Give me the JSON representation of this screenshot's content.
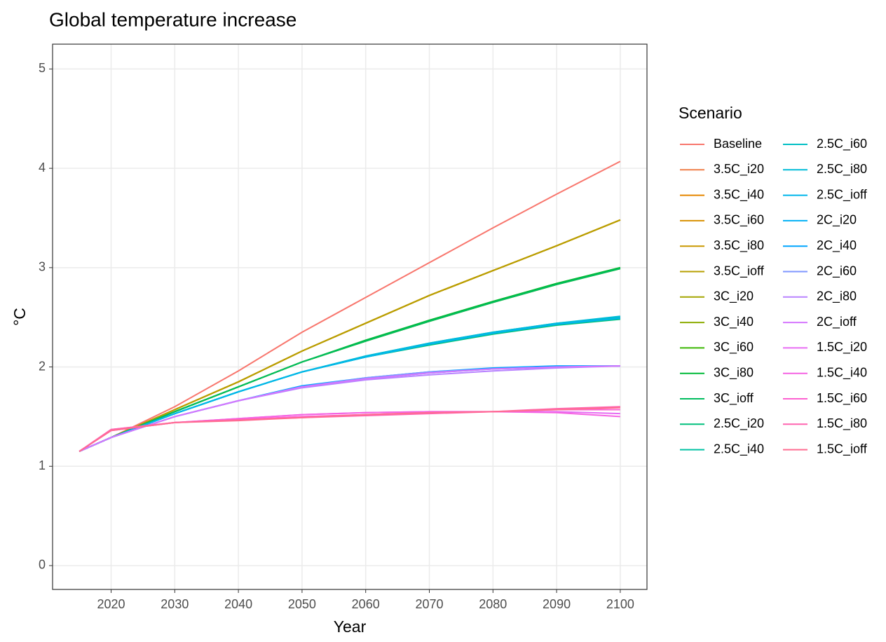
{
  "chart_data": {
    "type": "line",
    "title": "Global temperature increase",
    "x_label": "Year",
    "y_label": "°C",
    "legend_title": "Scenario",
    "legend_position": "right",
    "grid": true,
    "x": [
      2015,
      2020,
      2030,
      2040,
      2050,
      2060,
      2070,
      2080,
      2090,
      2100
    ],
    "xlim": [
      2010.8,
      2104.2
    ],
    "xticks": [
      2020,
      2030,
      2040,
      2050,
      2060,
      2070,
      2080,
      2090,
      2100
    ],
    "ylim": [
      -0.24,
      5.25
    ],
    "yticks": [
      0,
      1,
      2,
      3,
      4,
      5
    ],
    "series": [
      {
        "name": "Baseline",
        "color": "#F8766D",
        "values": [
          1.15,
          1.29,
          1.6,
          1.96,
          2.35,
          2.7,
          3.05,
          3.4,
          3.74,
          4.07
        ]
      },
      {
        "name": "3.5C_i20",
        "color": "#EF7F49",
        "values": [
          1.15,
          1.29,
          1.57,
          1.85,
          2.16,
          2.44,
          2.72,
          2.97,
          3.22,
          3.48
        ]
      },
      {
        "name": "3.5C_i40",
        "color": "#E58700",
        "values": [
          1.15,
          1.29,
          1.57,
          1.85,
          2.16,
          2.44,
          2.72,
          2.97,
          3.22,
          3.48
        ]
      },
      {
        "name": "3.5C_i60",
        "color": "#D89000",
        "values": [
          1.15,
          1.29,
          1.57,
          1.85,
          2.16,
          2.44,
          2.72,
          2.97,
          3.22,
          3.48
        ]
      },
      {
        "name": "3.5C_i80",
        "color": "#C99800",
        "values": [
          1.15,
          1.29,
          1.57,
          1.85,
          2.16,
          2.44,
          2.72,
          2.97,
          3.22,
          3.48
        ]
      },
      {
        "name": "3.5C_ioff",
        "color": "#B79F00",
        "values": [
          1.15,
          1.29,
          1.57,
          1.85,
          2.16,
          2.44,
          2.72,
          2.97,
          3.22,
          3.48
        ]
      },
      {
        "name": "3C_i20",
        "color": "#A3A500",
        "values": [
          1.15,
          1.29,
          1.55,
          1.8,
          2.05,
          2.26,
          2.46,
          2.65,
          2.83,
          2.99
        ]
      },
      {
        "name": "3C_i40",
        "color": "#8BAB00",
        "values": [
          1.15,
          1.29,
          1.55,
          1.8,
          2.05,
          2.26,
          2.46,
          2.65,
          2.83,
          2.99
        ]
      },
      {
        "name": "3C_i60",
        "color": "#39B600",
        "values": [
          1.15,
          1.29,
          1.55,
          1.8,
          2.05,
          2.26,
          2.47,
          2.66,
          2.84,
          3.0
        ]
      },
      {
        "name": "3C_i80",
        "color": "#00BA38",
        "values": [
          1.15,
          1.29,
          1.55,
          1.8,
          2.05,
          2.27,
          2.47,
          2.66,
          2.84,
          3.0
        ]
      },
      {
        "name": "3C_ioff",
        "color": "#00BD5F",
        "values": [
          1.15,
          1.29,
          1.55,
          1.8,
          2.05,
          2.26,
          2.46,
          2.65,
          2.83,
          2.99
        ]
      },
      {
        "name": "2.5C_i20",
        "color": "#00BF7D",
        "values": [
          1.15,
          1.29,
          1.53,
          1.75,
          1.95,
          2.1,
          2.22,
          2.33,
          2.42,
          2.48
        ]
      },
      {
        "name": "2.5C_i40",
        "color": "#00C1A3",
        "values": [
          1.15,
          1.29,
          1.53,
          1.75,
          1.95,
          2.1,
          2.23,
          2.34,
          2.43,
          2.49
        ]
      },
      {
        "name": "2.5C_i60",
        "color": "#00BFC4",
        "values": [
          1.15,
          1.29,
          1.53,
          1.75,
          1.95,
          2.11,
          2.24,
          2.35,
          2.44,
          2.5
        ]
      },
      {
        "name": "2.5C_i80",
        "color": "#00BCD8",
        "values": [
          1.15,
          1.29,
          1.53,
          1.75,
          1.95,
          2.11,
          2.24,
          2.35,
          2.44,
          2.51
        ]
      },
      {
        "name": "2.5C_ioff",
        "color": "#00B6EB",
        "values": [
          1.15,
          1.29,
          1.53,
          1.75,
          1.95,
          2.1,
          2.23,
          2.34,
          2.43,
          2.49
        ]
      },
      {
        "name": "2C_i20",
        "color": "#00B0F6",
        "values": [
          1.15,
          1.29,
          1.5,
          1.66,
          1.8,
          1.88,
          1.94,
          1.98,
          2.0,
          2.01
        ]
      },
      {
        "name": "2C_i40",
        "color": "#00A5FF",
        "values": [
          1.15,
          1.29,
          1.5,
          1.66,
          1.81,
          1.89,
          1.95,
          1.99,
          2.01,
          2.01
        ]
      },
      {
        "name": "2C_i60",
        "color": "#7F96FF",
        "values": [
          1.15,
          1.29,
          1.5,
          1.66,
          1.8,
          1.89,
          1.95,
          1.98,
          2.0,
          2.01
        ]
      },
      {
        "name": "2C_i80",
        "color": "#B983FF",
        "values": [
          1.15,
          1.29,
          1.5,
          1.66,
          1.79,
          1.87,
          1.92,
          1.96,
          1.99,
          2.01
        ]
      },
      {
        "name": "2C_ioff",
        "color": "#D575FE",
        "values": [
          1.15,
          1.29,
          1.5,
          1.66,
          1.8,
          1.88,
          1.94,
          1.98,
          2.0,
          2.01
        ]
      },
      {
        "name": "1.5C_i20",
        "color": "#E76BF3",
        "values": [
          1.15,
          1.36,
          1.44,
          1.48,
          1.52,
          1.54,
          1.55,
          1.55,
          1.55,
          1.53
        ]
      },
      {
        "name": "1.5C_i40",
        "color": "#F564E3",
        "values": [
          1.15,
          1.37,
          1.44,
          1.48,
          1.52,
          1.54,
          1.55,
          1.55,
          1.54,
          1.5
        ]
      },
      {
        "name": "1.5C_i60",
        "color": "#FD61D1",
        "values": [
          1.15,
          1.36,
          1.44,
          1.47,
          1.5,
          1.52,
          1.54,
          1.55,
          1.57,
          1.57
        ]
      },
      {
        "name": "1.5C_i80",
        "color": "#FF64B0",
        "values": [
          1.15,
          1.37,
          1.44,
          1.47,
          1.49,
          1.51,
          1.53,
          1.55,
          1.58,
          1.6
        ]
      },
      {
        "name": "1.5C_ioff",
        "color": "#FF6C91",
        "values": [
          1.15,
          1.36,
          1.44,
          1.46,
          1.49,
          1.52,
          1.54,
          1.55,
          1.57,
          1.59
        ]
      }
    ]
  }
}
